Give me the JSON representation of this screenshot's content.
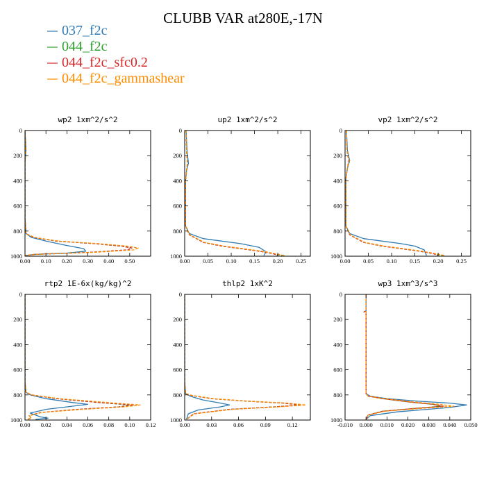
{
  "title": "CLUBB VAR at280E,-17N",
  "legend": [
    {
      "label": "037_f2c",
      "color": "#2e7bb4"
    },
    {
      "label": "044_f2c",
      "color": "#2ca02c"
    },
    {
      "label": "044_f2c_sfc0.2",
      "color": "#d62728"
    },
    {
      "label": "044_f2c_gammashear",
      "color": "#ff8c00"
    }
  ],
  "chart_data": [
    {
      "type": "line",
      "title": "wp2   1xm^2/s^2",
      "xlim": [
        0,
        0.6
      ],
      "ylim": [
        1000,
        0
      ],
      "xticks": [
        0,
        0.1,
        0.2,
        0.3,
        0.4,
        0.5
      ],
      "xtick_labels": [
        "0.00",
        "0.10",
        "0.20",
        "0.30",
        "0.40",
        "0.50"
      ],
      "yticks": [
        0,
        200,
        400,
        600,
        800,
        1000
      ],
      "series": [
        {
          "name": "037_f2c",
          "x": [
            0,
            0.005,
            0,
            0,
            0.005,
            0.03,
            0.1,
            0.2,
            0.28,
            0.29,
            0.2,
            0.05,
            0
          ],
          "y": [
            0,
            150,
            250,
            700,
            820,
            850,
            880,
            915,
            940,
            960,
            975,
            985,
            995
          ]
        },
        {
          "name": "044_f2c",
          "x": [
            0,
            0.004,
            0,
            0,
            0.005,
            0.04,
            0.15,
            0.33,
            0.46,
            0.51,
            0.49,
            0.3,
            0.05,
            0
          ],
          "y": [
            0,
            150,
            250,
            700,
            820,
            850,
            880,
            900,
            920,
            935,
            950,
            970,
            985,
            995
          ]
        },
        {
          "name": "044_f2c_sfc0.2",
          "x": [
            0,
            0.003,
            0,
            0,
            0.005,
            0.04,
            0.15,
            0.33,
            0.46,
            0.51,
            0.49,
            0.3,
            0.05,
            0
          ],
          "y": [
            0,
            150,
            250,
            700,
            820,
            850,
            880,
            900,
            920,
            935,
            950,
            970,
            985,
            995
          ]
        },
        {
          "name": "044_f2c_gammashear",
          "x": [
            0,
            0.004,
            0,
            0,
            0.005,
            0.045,
            0.16,
            0.35,
            0.49,
            0.54,
            0.52,
            0.32,
            0.06,
            0
          ],
          "y": [
            0,
            150,
            250,
            700,
            820,
            850,
            880,
            900,
            920,
            935,
            950,
            970,
            985,
            995
          ]
        }
      ]
    },
    {
      "type": "line",
      "title": "up2   1xm^2/s^2",
      "xlim": [
        0,
        0.27
      ],
      "ylim": [
        1000,
        0
      ],
      "xticks": [
        0,
        0.05,
        0.1,
        0.15,
        0.2,
        0.25
      ],
      "xtick_labels": [
        "0.00",
        "0.05",
        "0.10",
        "0.15",
        "0.20",
        "0.25"
      ],
      "yticks": [
        0,
        200,
        400,
        600,
        800,
        1000
      ],
      "series": [
        {
          "name": "037_f2c",
          "x": [
            0.003,
            0.005,
            0.008,
            0.004,
            0.002,
            0.002,
            0.01,
            0.04,
            0.08,
            0.12,
            0.16,
            0.175,
            0.17
          ],
          "y": [
            0,
            160,
            260,
            320,
            400,
            760,
            820,
            860,
            880,
            900,
            930,
            965,
            995
          ]
        },
        {
          "name": "044_f2c",
          "x": [
            0.003,
            0.004,
            0.006,
            0.004,
            0.002,
            0.002,
            0.01,
            0.04,
            0.08,
            0.12,
            0.16,
            0.19,
            0.21
          ],
          "y": [
            0,
            160,
            260,
            320,
            400,
            760,
            830,
            890,
            920,
            940,
            960,
            980,
            995
          ]
        },
        {
          "name": "044_f2c_sfc0.2",
          "x": [
            0.003,
            0.004,
            0.006,
            0.004,
            0.002,
            0.002,
            0.01,
            0.04,
            0.08,
            0.12,
            0.16,
            0.19,
            0.2
          ],
          "y": [
            0,
            160,
            260,
            320,
            400,
            760,
            830,
            890,
            920,
            940,
            960,
            980,
            995
          ]
        },
        {
          "name": "044_f2c_gammashear",
          "x": [
            0.003,
            0.004,
            0.006,
            0.004,
            0.002,
            0.002,
            0.011,
            0.042,
            0.085,
            0.125,
            0.165,
            0.195,
            0.215
          ],
          "y": [
            0,
            160,
            260,
            320,
            400,
            760,
            830,
            890,
            920,
            940,
            960,
            980,
            995
          ]
        }
      ]
    },
    {
      "type": "line",
      "title": "vp2   1xm^2/s^2",
      "xlim": [
        0,
        0.27
      ],
      "ylim": [
        1000,
        0
      ],
      "xticks": [
        0,
        0.05,
        0.1,
        0.15,
        0.2,
        0.25
      ],
      "xtick_labels": [
        "0.00",
        "0.05",
        "0.10",
        "0.15",
        "0.20",
        "0.25"
      ],
      "yticks": [
        0,
        200,
        400,
        600,
        800,
        1000
      ],
      "series": [
        {
          "name": "037_f2c",
          "x": [
            0.003,
            0.005,
            0.01,
            0.005,
            0.002,
            0.002,
            0.01,
            0.04,
            0.08,
            0.12,
            0.15,
            0.17,
            0.175
          ],
          "y": [
            0,
            160,
            240,
            300,
            380,
            760,
            820,
            860,
            880,
            900,
            920,
            950,
            995
          ]
        },
        {
          "name": "044_f2c",
          "x": [
            0.003,
            0.004,
            0.008,
            0.005,
            0.002,
            0.002,
            0.01,
            0.04,
            0.08,
            0.12,
            0.16,
            0.19,
            0.21
          ],
          "y": [
            0,
            160,
            240,
            300,
            380,
            760,
            830,
            890,
            920,
            940,
            960,
            980,
            995
          ]
        },
        {
          "name": "044_f2c_sfc0.2",
          "x": [
            0.003,
            0.004,
            0.008,
            0.005,
            0.002,
            0.002,
            0.01,
            0.04,
            0.08,
            0.12,
            0.16,
            0.19,
            0.2
          ],
          "y": [
            0,
            160,
            240,
            300,
            380,
            760,
            830,
            890,
            920,
            940,
            960,
            980,
            995
          ]
        },
        {
          "name": "044_f2c_gammashear",
          "x": [
            0.003,
            0.004,
            0.009,
            0.005,
            0.002,
            0.002,
            0.011,
            0.042,
            0.085,
            0.125,
            0.165,
            0.195,
            0.215
          ],
          "y": [
            0,
            160,
            240,
            300,
            380,
            760,
            830,
            890,
            920,
            940,
            960,
            980,
            995
          ]
        }
      ]
    },
    {
      "type": "line",
      "title": "rtp2   1E-6x(kg/kg)^2",
      "xlim": [
        0,
        0.12
      ],
      "ylim": [
        1000,
        0
      ],
      "xticks": [
        0,
        0.02,
        0.04,
        0.06,
        0.08,
        0.1,
        0.12
      ],
      "xtick_labels": [
        "0.00",
        "0.02",
        "0.04",
        "0.06",
        "0.08",
        "0.10",
        "0.12"
      ],
      "yticks": [
        0,
        200,
        400,
        600,
        800,
        1000
      ],
      "series": [
        {
          "name": "037_f2c",
          "x": [
            0,
            0,
            0.001,
            0.005,
            0.02,
            0.045,
            0.06,
            0.045,
            0.02,
            0.005,
            0.015,
            0.022,
            0.01
          ],
          "y": [
            0,
            700,
            780,
            800,
            830,
            860,
            875,
            890,
            915,
            945,
            975,
            985,
            995
          ]
        },
        {
          "name": "044_f2c",
          "x": [
            0,
            0,
            0.001,
            0.006,
            0.03,
            0.07,
            0.1,
            0.09,
            0.05,
            0.015,
            0.004,
            0.006,
            0.002
          ],
          "y": [
            0,
            700,
            780,
            800,
            830,
            860,
            880,
            895,
            915,
            940,
            965,
            985,
            995
          ]
        },
        {
          "name": "044_f2c_sfc0.2",
          "x": [
            0,
            0,
            0.001,
            0.006,
            0.03,
            0.07,
            0.104,
            0.09,
            0.05,
            0.015,
            0.004,
            0.006,
            0.002
          ],
          "y": [
            0,
            700,
            780,
            800,
            830,
            860,
            880,
            895,
            915,
            940,
            965,
            985,
            995
          ]
        },
        {
          "name": "044_f2c_gammashear",
          "x": [
            0,
            0,
            0.001,
            0.007,
            0.033,
            0.078,
            0.11,
            0.095,
            0.055,
            0.016,
            0.004,
            0.006,
            0.002
          ],
          "y": [
            0,
            700,
            780,
            800,
            830,
            860,
            880,
            895,
            915,
            940,
            965,
            985,
            995
          ]
        }
      ]
    },
    {
      "type": "line",
      "title": "thlp2   1xK^2",
      "xlim": [
        0,
        0.14
      ],
      "ylim": [
        1000,
        0
      ],
      "xticks": [
        0,
        0.03,
        0.06,
        0.09,
        0.12
      ],
      "xtick_labels": [
        "0.00",
        "0.03",
        "0.06",
        "0.09",
        "0.12"
      ],
      "yticks": [
        0,
        200,
        400,
        600,
        800,
        1000
      ],
      "series": [
        {
          "name": "037_f2c",
          "x": [
            0,
            0,
            0.001,
            0.006,
            0.02,
            0.04,
            0.05,
            0.04,
            0.015,
            0.004,
            0.002
          ],
          "y": [
            0,
            700,
            790,
            810,
            840,
            865,
            880,
            895,
            920,
            950,
            995
          ]
        },
        {
          "name": "044_f2c",
          "x": [
            0,
            0,
            0.001,
            0.008,
            0.03,
            0.07,
            0.11,
            0.13,
            0.1,
            0.05,
            0.01,
            0.002
          ],
          "y": [
            0,
            700,
            790,
            805,
            830,
            850,
            865,
            880,
            895,
            915,
            950,
            995
          ]
        },
        {
          "name": "044_f2c_sfc0.2",
          "x": [
            0,
            0,
            0.001,
            0.008,
            0.03,
            0.07,
            0.11,
            0.13,
            0.1,
            0.05,
            0.01,
            0.002
          ],
          "y": [
            0,
            700,
            790,
            805,
            830,
            850,
            865,
            880,
            895,
            915,
            950,
            995
          ]
        },
        {
          "name": "044_f2c_gammashear",
          "x": [
            0,
            0,
            0.001,
            0.009,
            0.032,
            0.073,
            0.115,
            0.135,
            0.105,
            0.053,
            0.011,
            0.002
          ],
          "y": [
            0,
            700,
            790,
            805,
            830,
            850,
            865,
            880,
            895,
            915,
            950,
            995
          ]
        }
      ]
    },
    {
      "type": "line",
      "title": "wp3   1xm^3/s^3",
      "xlim": [
        -0.01,
        0.05
      ],
      "ylim": [
        1000,
        0
      ],
      "xticks": [
        -0.01,
        0,
        0.01,
        0.02,
        0.03,
        0.04,
        0.05
      ],
      "xtick_labels": [
        "-0.010",
        "0.000",
        "0.010",
        "0.020",
        "0.030",
        "0.040",
        "0.050"
      ],
      "yticks": [
        0,
        200,
        400,
        600,
        800,
        1000
      ],
      "series": [
        {
          "name": "037_f2c",
          "x": [
            0,
            0,
            0,
            0,
            0.002,
            0.01,
            0.025,
            0.04,
            0.048,
            0.04,
            0.015,
            0.002,
            0
          ],
          "y": [
            0,
            100,
            700,
            790,
            810,
            830,
            850,
            865,
            880,
            900,
            935,
            965,
            995
          ]
        },
        {
          "name": "044_f2c",
          "x": [
            0,
            0,
            0,
            0,
            0.001,
            0.008,
            0.02,
            0.032,
            0.036,
            0.025,
            0.008,
            0.001,
            0
          ],
          "y": [
            0,
            100,
            700,
            790,
            810,
            830,
            855,
            875,
            890,
            905,
            930,
            960,
            995
          ]
        },
        {
          "name": "044_f2c_sfc0.2",
          "x": [
            0,
            0,
            -0.001,
            0,
            0,
            0,
            0,
            0.001,
            0.008,
            0.02,
            0.032,
            0.037,
            0.025,
            0.008,
            0.001,
            0
          ],
          "y": [
            0,
            130,
            140,
            150,
            160,
            700,
            790,
            810,
            830,
            855,
            875,
            890,
            905,
            930,
            960,
            995
          ]
        },
        {
          "name": "044_f2c_gammashear",
          "x": [
            0,
            0,
            0,
            0,
            0.001,
            0.009,
            0.022,
            0.035,
            0.042,
            0.028,
            0.009,
            0.001,
            0
          ],
          "y": [
            0,
            100,
            700,
            790,
            810,
            830,
            855,
            875,
            890,
            905,
            930,
            960,
            995
          ]
        }
      ]
    }
  ]
}
